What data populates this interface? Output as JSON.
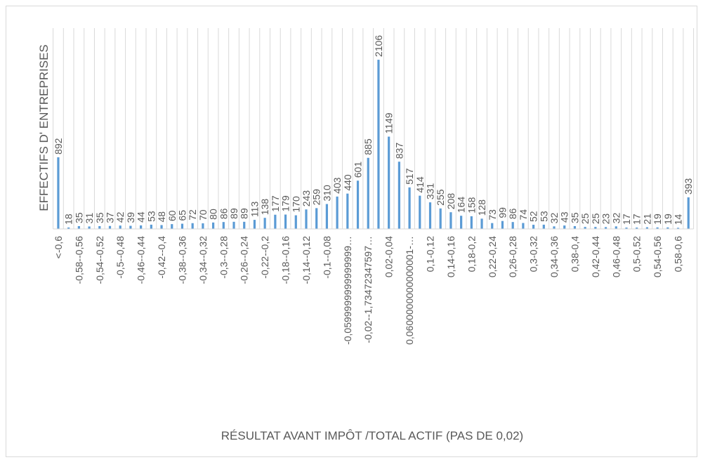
{
  "chart_data": {
    "type": "bar",
    "x_label": "RÉSULTAT AVANT IMPÔT /TOTAL ACTIF  (PAS DE 0,02)",
    "y_label": "EFFECTIFS D' ENTREPRISES",
    "categories": [
      "<-0,6",
      null,
      "-0,58--0,56",
      null,
      "-0,54--0,52",
      null,
      "-0,5--0,48",
      null,
      "-0,46--0,44",
      null,
      "-0,42--0,4",
      null,
      "-0,38--0,36",
      null,
      "-0,34--0,32",
      null,
      "-0,3--0,28",
      null,
      "-0,26--0,24",
      null,
      "-0,22--0,2",
      null,
      "-0,18--0,16",
      null,
      "-0,14--0,12",
      null,
      "-0,1--0,08",
      null,
      "-0,0599999999999999…",
      null,
      "-0,02--1,73472347597…",
      null,
      "0,02-0,04",
      null,
      "0,0600000000000001-…",
      null,
      "0,1-0,12",
      null,
      "0,14-0,16",
      null,
      "0,18-0,2",
      null,
      "0,22-0,24",
      null,
      "0,26-0,28",
      null,
      "0,3-0,32",
      null,
      "0,34-0,36",
      null,
      "0,38-0,4",
      null,
      "0,42-0,44",
      null,
      "0,46-0,48",
      null,
      "0,5-0,52",
      null,
      "0,54-0,56",
      null,
      "0,58-0,6",
      null
    ],
    "values": [
      892,
      18,
      35,
      31,
      35,
      37,
      42,
      39,
      44,
      53,
      48,
      60,
      65,
      72,
      70,
      80,
      86,
      89,
      89,
      113,
      138,
      177,
      179,
      170,
      243,
      259,
      310,
      403,
      440,
      601,
      885,
      2106,
      1149,
      837,
      517,
      414,
      331,
      255,
      208,
      164,
      158,
      128,
      73,
      99,
      86,
      74,
      52,
      53,
      32,
      43,
      35,
      25,
      25,
      23,
      32,
      17,
      17,
      21,
      19,
      19,
      14,
      393
    ],
    "color": "#5b9bd5",
    "ylim": [
      0,
      2500
    ],
    "grid": true
  }
}
